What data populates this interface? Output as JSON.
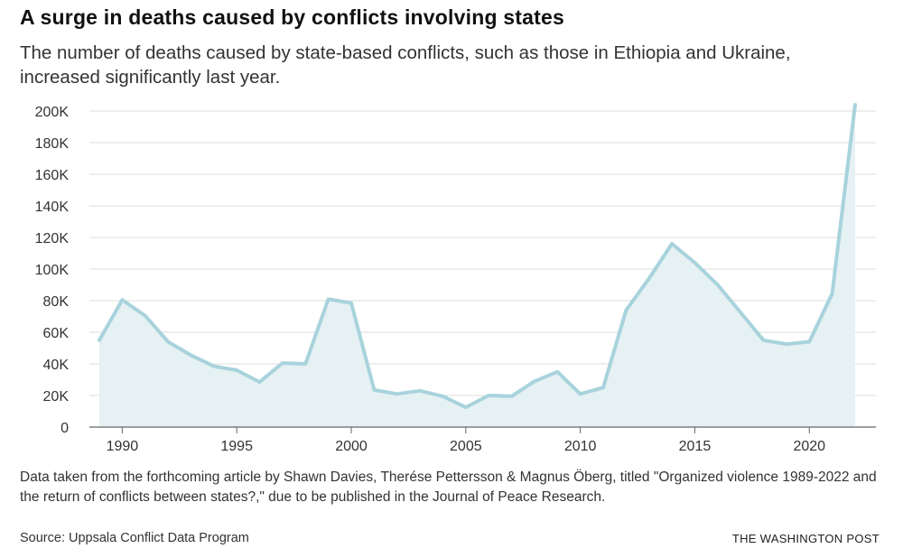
{
  "header": {
    "title": "A surge in deaths caused by conflicts involving states",
    "subtitle": "The number of deaths caused by state-based conflicts, such as those in Ethiopia and Ukraine, increased significantly last year."
  },
  "footer": {
    "note": "Data taken from the forthcoming article by Shawn Davies, Therése Pettersson & Magnus Öberg, titled \"Organized violence 1989-2022 and the return of conflicts between states?,\" due to be published in the Journal of Peace Research.",
    "source": "Source: Uppsala Conflict Data Program",
    "brand": "THE WASHINGTON POST"
  },
  "colors": {
    "line": "#a8d3dc",
    "fill": "#e6f1f4",
    "grid": "#dcdcdc",
    "axis": "#666666"
  },
  "chart_data": {
    "type": "area",
    "x": [
      1989,
      1990,
      1991,
      1992,
      1993,
      1994,
      1995,
      1996,
      1997,
      1998,
      1999,
      2000,
      2001,
      2002,
      2003,
      2004,
      2005,
      2006,
      2007,
      2008,
      2009,
      2010,
      2011,
      2012,
      2013,
      2014,
      2015,
      2016,
      2017,
      2018,
      2019,
      2020,
      2021,
      2022
    ],
    "series": [
      {
        "values": [
          55000,
          80500,
          70500,
          54000,
          45500,
          38500,
          36000,
          28500,
          40500,
          40000,
          81000,
          78500,
          23500,
          21000,
          23000,
          19500,
          12500,
          20000,
          19500,
          29000,
          35000,
          21000,
          25000,
          74000,
          94000,
          116000,
          104000,
          90000,
          72500,
          55000,
          52500,
          54000,
          84500,
          204000
        ]
      }
    ],
    "xlim": [
      1989,
      2022
    ],
    "ylim": [
      0,
      200000
    ],
    "y_ticks": [
      0,
      20000,
      40000,
      60000,
      80000,
      100000,
      120000,
      140000,
      160000,
      180000,
      200000
    ],
    "y_tick_labels": [
      "0",
      "20K",
      "40K",
      "60K",
      "80K",
      "100K",
      "120K",
      "140K",
      "160K",
      "180K",
      "200K"
    ],
    "x_ticks": [
      1990,
      1995,
      2000,
      2005,
      2010,
      2015,
      2020
    ],
    "x_tick_labels": [
      "1990",
      "1995",
      "2000",
      "2005",
      "2010",
      "2015",
      "2020"
    ],
    "grid": true
  }
}
